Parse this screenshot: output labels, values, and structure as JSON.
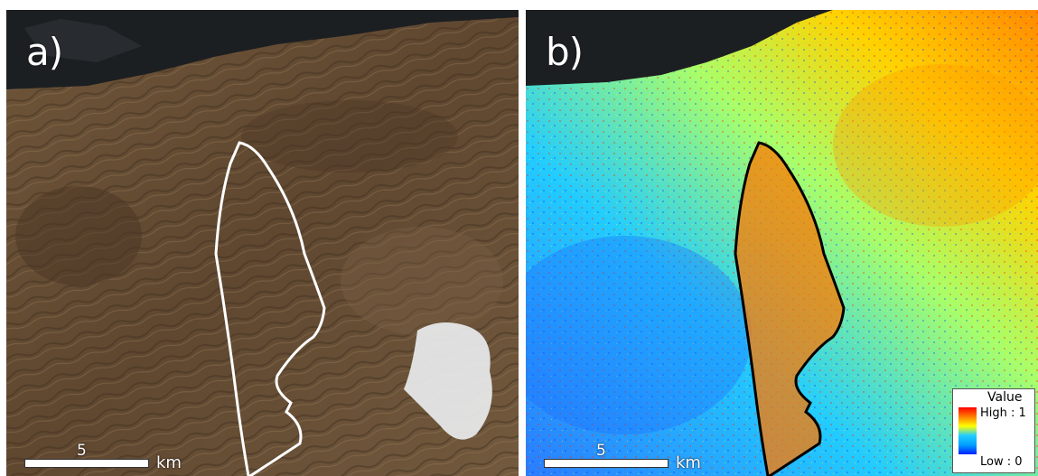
{
  "panels": [
    {
      "label": "a)",
      "outline_color": "#ffffff",
      "scale_value": "5",
      "scale_unit": "km"
    },
    {
      "label": "b)",
      "outline_color": "#000000",
      "scale_value": "5",
      "scale_unit": "km"
    }
  ],
  "legend": {
    "title": "Value",
    "high": "High : 1",
    "low": "Low : 0",
    "colors": [
      "#ff0000",
      "#ff7f00",
      "#ffff00",
      "#22ccff",
      "#00a0ff",
      "#0020ff"
    ]
  },
  "colors": {
    "sea": "#1c1f22",
    "terrain": "#6b5238",
    "glacier": "#e9ecee"
  }
}
